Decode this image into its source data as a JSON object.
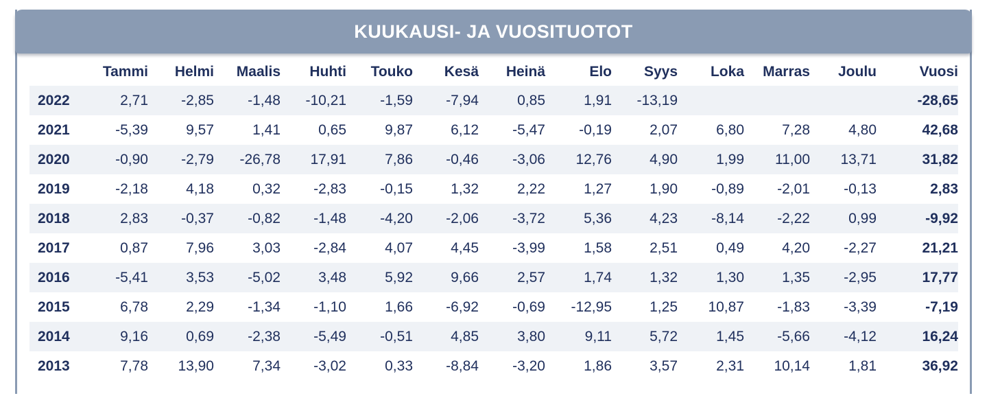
{
  "title": "KUUKAUSI- JA VUOSITUOTOT",
  "columns": [
    "Tammi",
    "Helmi",
    "Maalis",
    "Huhti",
    "Touko",
    "Kesä",
    "Heinä",
    "Elo",
    "Syys",
    "Loka",
    "Marras",
    "Joulu",
    "Vuosi"
  ],
  "rows": [
    {
      "year": "2022",
      "values": [
        "2,71",
        "-2,85",
        "-1,48",
        "-10,21",
        "-1,59",
        "-7,94",
        "0,85",
        "1,91",
        "-13,19",
        "",
        "",
        ""
      ],
      "annual": "-28,65"
    },
    {
      "year": "2021",
      "values": [
        "-5,39",
        "9,57",
        "1,41",
        "0,65",
        "9,87",
        "6,12",
        "-5,47",
        "-0,19",
        "2,07",
        "6,80",
        "7,28",
        "4,80"
      ],
      "annual": "42,68"
    },
    {
      "year": "2020",
      "values": [
        "-0,90",
        "-2,79",
        "-26,78",
        "17,91",
        "7,86",
        "-0,46",
        "-3,06",
        "12,76",
        "4,90",
        "1,99",
        "11,00",
        "13,71"
      ],
      "annual": "31,82"
    },
    {
      "year": "2019",
      "values": [
        "-2,18",
        "4,18",
        "0,32",
        "-2,83",
        "-0,15",
        "1,32",
        "2,22",
        "1,27",
        "1,90",
        "-0,89",
        "-2,01",
        "-0,13"
      ],
      "annual": "2,83"
    },
    {
      "year": "2018",
      "values": [
        "2,83",
        "-0,37",
        "-0,82",
        "-1,48",
        "-4,20",
        "-2,06",
        "-3,72",
        "5,36",
        "4,23",
        "-8,14",
        "-2,22",
        "0,99"
      ],
      "annual": "-9,92"
    },
    {
      "year": "2017",
      "values": [
        "0,87",
        "7,96",
        "3,03",
        "-2,84",
        "4,07",
        "4,45",
        "-3,99",
        "1,58",
        "2,51",
        "0,49",
        "4,20",
        "-2,27"
      ],
      "annual": "21,21"
    },
    {
      "year": "2016",
      "values": [
        "-5,41",
        "3,53",
        "-5,02",
        "3,48",
        "5,92",
        "9,66",
        "2,57",
        "1,74",
        "1,32",
        "1,30",
        "1,35",
        "-2,95"
      ],
      "annual": "17,77"
    },
    {
      "year": "2015",
      "values": [
        "6,78",
        "2,29",
        "-1,34",
        "-1,10",
        "1,66",
        "-6,92",
        "-0,69",
        "-12,95",
        "1,25",
        "10,87",
        "-1,83",
        "-3,39"
      ],
      "annual": "-7,19"
    },
    {
      "year": "2014",
      "values": [
        "9,16",
        "0,69",
        "-2,38",
        "-5,49",
        "-0,51",
        "4,85",
        "3,80",
        "9,11",
        "5,72",
        "1,45",
        "-5,66",
        "-4,12"
      ],
      "annual": "16,24"
    },
    {
      "year": "2013",
      "values": [
        "7,78",
        "13,90",
        "7,34",
        "-3,02",
        "0,33",
        "-8,84",
        "-3,20",
        "1,86",
        "3,57",
        "2,31",
        "10,14",
        "1,81"
      ],
      "annual": "36,92"
    }
  ],
  "colors": {
    "banner": "#8a9bb3",
    "text": "#1f2f5c",
    "stripe": "#eff2f6"
  }
}
